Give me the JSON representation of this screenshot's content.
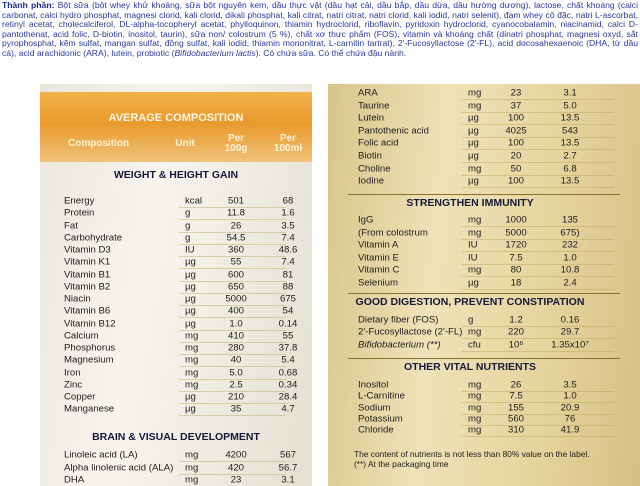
{
  "ingredients": {
    "label": "Thành phần:",
    "text": "Bột sữa (bột whey khử khoáng, sữa bột nguyên kem, dầu thực vật (dầu hạt cải, dầu bắp, dầu dừa, dầu hướng dương), lactose, chất khoáng (calci carbonat, calci hydro phosphat, magnesi clorid, kali clorid, dikali phosphat, kali citrat, natri citrat, natri clorid, kali iodid, natri selenit), đạm whey cô đặc, natri L-ascorbat, retinyl acetat, cholecalciferol, DL-alpha-tocopheryl acetat, phylloquinon, thiamin hydroclorid, riboflavin, pyridoxin hydroclorid, cyanocobalamin, niacinamid, calci D-pantothenat, acid folic, D-biotin, inositol, taurin), sữa non/ colostrum (5 %), chất xơ thực phẩm (FOS), vitamin và khoáng chất (dinatri phosphat, magnesi oxyd, sắt pyrophosphat, kẽm sulfat, mangan sulfat, đồng sulfat, kali iodid, thiamin mononitrat, L-carnitin tartrat), 2'-Fucosyllactose (2'-FL), acid docosahexaenoic (DHA, từ dầu cá), acid arachidonic (ARA), lutein, probiotic (",
    "italic": "Bifidobacterium lactis",
    "tail": "). Có chứa sữa. Có thể chứa đậu nành."
  },
  "left_panel": {
    "title": "AVERAGE COMPOSITION",
    "columns": [
      "Composition",
      "Unit",
      "Per 100g",
      "Per 100ml"
    ],
    "sections": [
      {
        "title": "WEIGHT & HEIGHT GAIN",
        "rows": [
          [
            "Energy",
            "kcal",
            "501",
            "68"
          ],
          [
            "Protein",
            "g",
            "11.8",
            "1.6"
          ],
          [
            "Fat",
            "g",
            "26",
            "3.5"
          ],
          [
            "Carbohydrate",
            "g",
            "54.5",
            "7.4"
          ],
          [
            "Vitamin D3",
            "IU",
            "360",
            "48.6"
          ],
          [
            "Vitamin K1",
            "µg",
            "55",
            "7.4"
          ],
          [
            "Vitamin B1",
            "µg",
            "600",
            "81"
          ],
          [
            "Vitamin B2",
            "µg",
            "650",
            "88"
          ],
          [
            "Niacin",
            "µg",
            "5000",
            "675"
          ],
          [
            "Vitamin B6",
            "µg",
            "400",
            "54"
          ],
          [
            "Vitamin B12",
            "µg",
            "1.0",
            "0.14"
          ],
          [
            "Calcium",
            "mg",
            "410",
            "55"
          ],
          [
            "Phosphorus",
            "mg",
            "280",
            "37.8"
          ],
          [
            "Magnesium",
            "mg",
            "40",
            "5.4"
          ],
          [
            "Iron",
            "mg",
            "5.0",
            "0.68"
          ],
          [
            "Zinc",
            "mg",
            "2.5",
            "0.34"
          ],
          [
            "Copper",
            "µg",
            "210",
            "28.4"
          ],
          [
            "Manganese",
            "µg",
            "35",
            "4.7"
          ]
        ]
      },
      {
        "title": "BRAIN & VISUAL DEVELOPMENT",
        "rows": [
          [
            "Linoleic acid (LA)",
            "mg",
            "4200",
            "567"
          ],
          [
            "Alpha linolenic acid (ALA)",
            "mg",
            "420",
            "56.7"
          ],
          [
            "DHA",
            "mg",
            "23",
            "3.1"
          ]
        ]
      }
    ]
  },
  "right_panel": {
    "rows": [
      [
        "ARA",
        "mg",
        "23",
        "3.1"
      ],
      [
        "Taurine",
        "mg",
        "37",
        "5.0"
      ],
      [
        "Lutein",
        "µg",
        "100",
        "13.5"
      ],
      [
        "Pantothenic acid",
        "µg",
        "4025",
        "543"
      ],
      [
        "Folic acid",
        "µg",
        "100",
        "13.5"
      ],
      [
        "Biotin",
        "µg",
        "20",
        "2.7"
      ],
      [
        "Choline",
        "mg",
        "50",
        "6.8"
      ],
      [
        "Iodine",
        "µg",
        "100",
        "13.5"
      ]
    ],
    "sections": [
      {
        "title": "STRENGTHEN IMMUNITY",
        "rows": [
          [
            "IgG",
            "mg",
            "1000",
            "135"
          ],
          [
            "(From colostrum",
            "mg",
            "5000",
            "675)"
          ],
          [
            "Vitamin A",
            "IU",
            "1720",
            "232"
          ],
          [
            "Vitamin E",
            "IU",
            "7.5",
            "1.0"
          ],
          [
            "Vitamin C",
            "mg",
            "80",
            "10.8"
          ],
          [
            "Selenium",
            "µg",
            "18",
            "2.4"
          ]
        ]
      },
      {
        "title": "GOOD DIGESTION, PREVENT CONSTIPATION",
        "rows": [
          [
            "Dietary fiber (FOS)",
            "g",
            "1.2",
            "0.16"
          ],
          [
            "2'-Fucosyllactose (2'-FL)",
            "mg",
            "220",
            "29.7"
          ],
          [
            "Bifidobacterium (**)",
            "cfu",
            "10⁸",
            "1.35x10⁷"
          ]
        ]
      },
      {
        "title": "OTHER VITAL NUTRIENTS",
        "rows": [
          [
            "Inositol",
            "mg",
            "26",
            "3.5"
          ],
          [
            "L-Carnitine",
            "mg",
            "7.5",
            "1.0"
          ],
          [
            "Sodium",
            "mg",
            "155",
            "20.9"
          ],
          [
            "Potassium",
            "mg",
            "560",
            "76"
          ],
          [
            "Chloride",
            "mg",
            "310",
            "41.9"
          ]
        ]
      }
    ],
    "footnotes": [
      "The content of nutrients is not less than 80% value on the label.",
      "(**) At the packaging time"
    ]
  }
}
